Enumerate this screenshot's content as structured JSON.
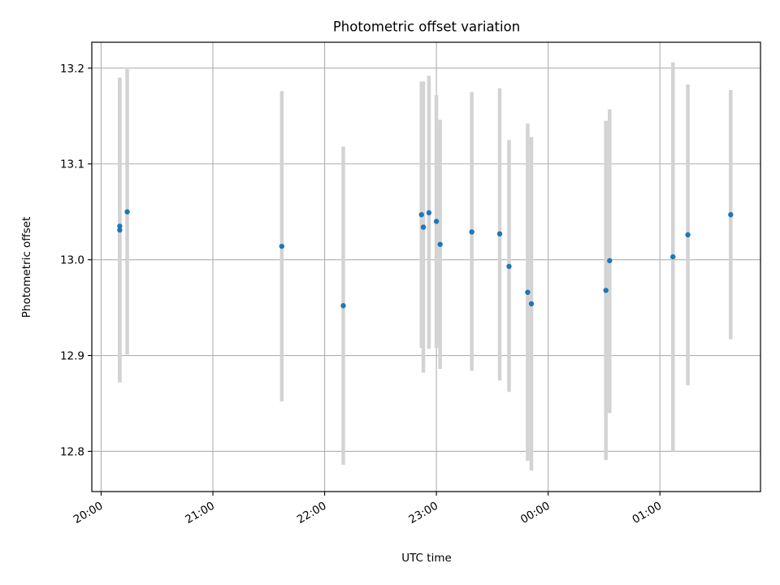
{
  "chart_data": {
    "type": "scatter",
    "title": "Photometric offset variation",
    "xlabel": "UTC time",
    "ylabel": "Photometric offset",
    "x_tick_labels": [
      "20:00",
      "21:00",
      "22:00",
      "23:00",
      "00:00",
      "01:00"
    ],
    "x_ticks": [
      "20:00",
      "21:00",
      "22:00",
      "23:00",
      "24:00",
      "25:00"
    ],
    "xlim": [
      "19:55",
      "25:54"
    ],
    "y_tick_labels": [
      "12.8",
      "12.9",
      "13.0",
      "13.1",
      "13.2"
    ],
    "y_ticks": [
      12.8,
      12.9,
      13.0,
      13.1,
      13.2
    ],
    "ylim": [
      12.758,
      13.227
    ],
    "grid": true,
    "series": [
      {
        "marker_color": "#1f77b4",
        "errorbar_color": "#d3d3d3",
        "points": [
          {
            "x": "20:10",
            "y": 13.031,
            "ylo": 12.872,
            "yhi": 13.19
          },
          {
            "x": "20:10",
            "y": 13.035,
            "ylo": 12.872,
            "yhi": 13.19
          },
          {
            "x": "20:14",
            "y": 13.05,
            "ylo": 12.901,
            "yhi": 13.199
          },
          {
            "x": "21:37",
            "y": 13.014,
            "ylo": 12.852,
            "yhi": 13.176
          },
          {
            "x": "22:10",
            "y": 12.952,
            "ylo": 12.786,
            "yhi": 13.118
          },
          {
            "x": "22:52",
            "y": 13.047,
            "ylo": 12.908,
            "yhi": 13.186
          },
          {
            "x": "22:53",
            "y": 13.034,
            "ylo": 12.882,
            "yhi": 13.186
          },
          {
            "x": "22:56",
            "y": 13.049,
            "ylo": 12.907,
            "yhi": 13.192
          },
          {
            "x": "23:00",
            "y": 13.04,
            "ylo": 12.908,
            "yhi": 13.172
          },
          {
            "x": "23:02",
            "y": 13.016,
            "ylo": 12.886,
            "yhi": 13.146
          },
          {
            "x": "23:19",
            "y": 13.029,
            "ylo": 12.884,
            "yhi": 13.175
          },
          {
            "x": "23:34",
            "y": 13.027,
            "ylo": 12.874,
            "yhi": 13.179
          },
          {
            "x": "23:39",
            "y": 12.993,
            "ylo": 12.862,
            "yhi": 13.125
          },
          {
            "x": "23:49",
            "y": 12.966,
            "ylo": 12.79,
            "yhi": 13.142
          },
          {
            "x": "23:51",
            "y": 12.954,
            "ylo": 12.78,
            "yhi": 13.128
          },
          {
            "x": "24:31",
            "y": 12.968,
            "ylo": 12.791,
            "yhi": 13.145
          },
          {
            "x": "24:33",
            "y": 12.999,
            "ylo": 12.84,
            "yhi": 13.157
          },
          {
            "x": "25:07",
            "y": 13.003,
            "ylo": 12.8,
            "yhi": 13.206
          },
          {
            "x": "25:15",
            "y": 13.026,
            "ylo": 12.869,
            "yhi": 13.183
          },
          {
            "x": "25:38",
            "y": 13.047,
            "ylo": 12.917,
            "yhi": 13.177
          }
        ]
      }
    ]
  }
}
